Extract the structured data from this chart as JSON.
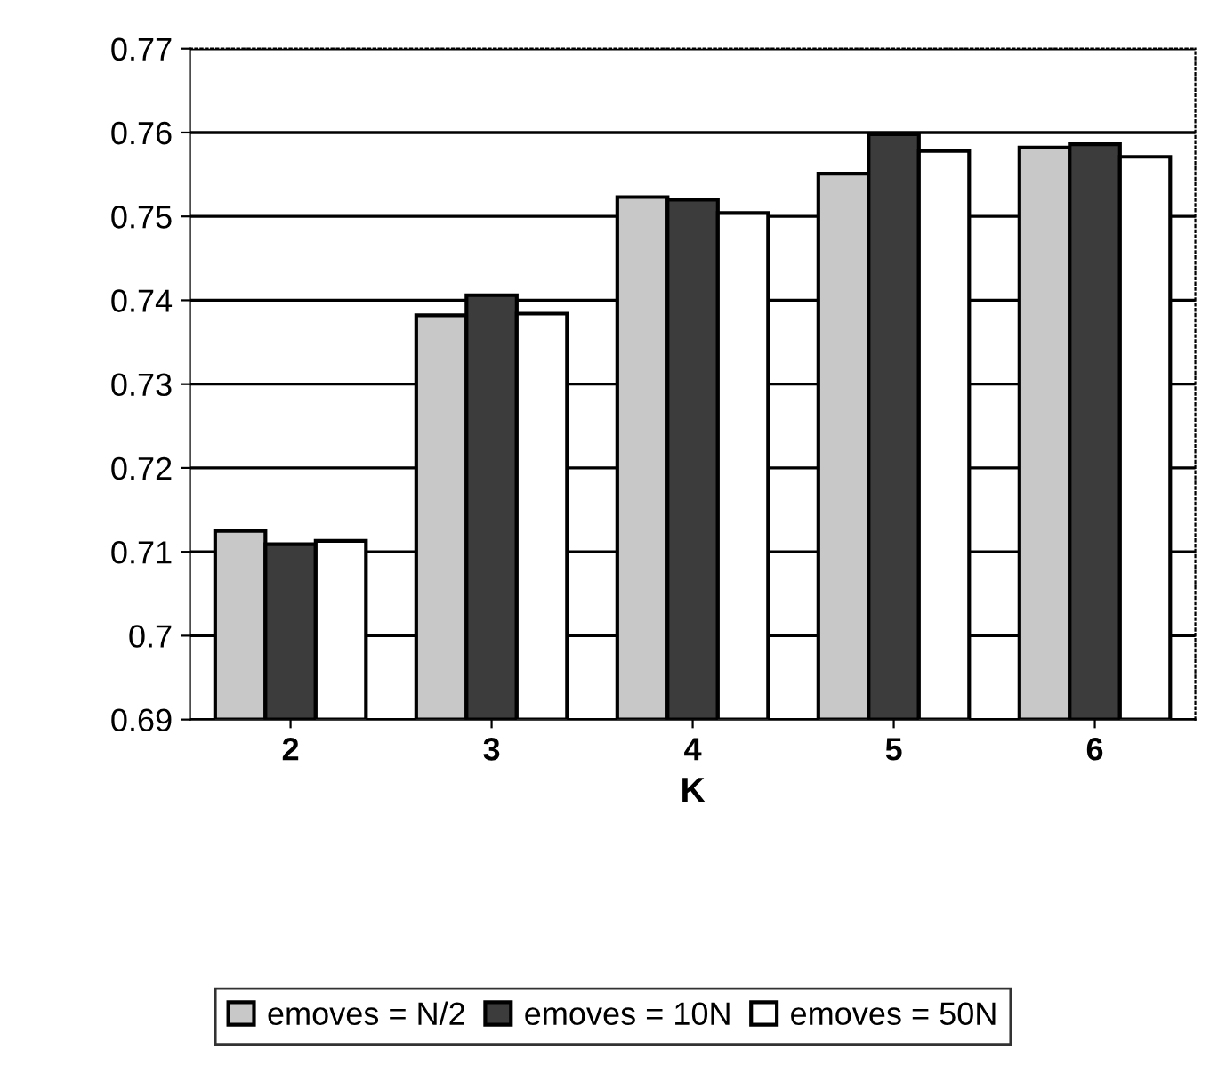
{
  "chart_data": {
    "type": "bar",
    "xlabel": "K",
    "categories": [
      "2",
      "3",
      "4",
      "5",
      "6"
    ],
    "series": [
      {
        "name": "emoves = N/2",
        "color": "#c8c8c8",
        "values": [
          0.7125,
          0.7382,
          0.7523,
          0.7551,
          0.7582
        ]
      },
      {
        "name": "emoves = 10N",
        "color": "#3c3c3c",
        "values": [
          0.7109,
          0.7406,
          0.752,
          0.7598,
          0.7586
        ]
      },
      {
        "name": "emoves = 50N",
        "color": "#ffffff",
        "values": [
          0.7113,
          0.7384,
          0.7504,
          0.7578,
          0.7571
        ]
      }
    ],
    "ylim": [
      0.69,
      0.77
    ],
    "yticks": [
      0.69,
      0.7,
      0.71,
      0.72,
      0.73,
      0.74,
      0.75,
      0.76,
      0.77
    ],
    "grid": "y",
    "legend": "bottom"
  }
}
